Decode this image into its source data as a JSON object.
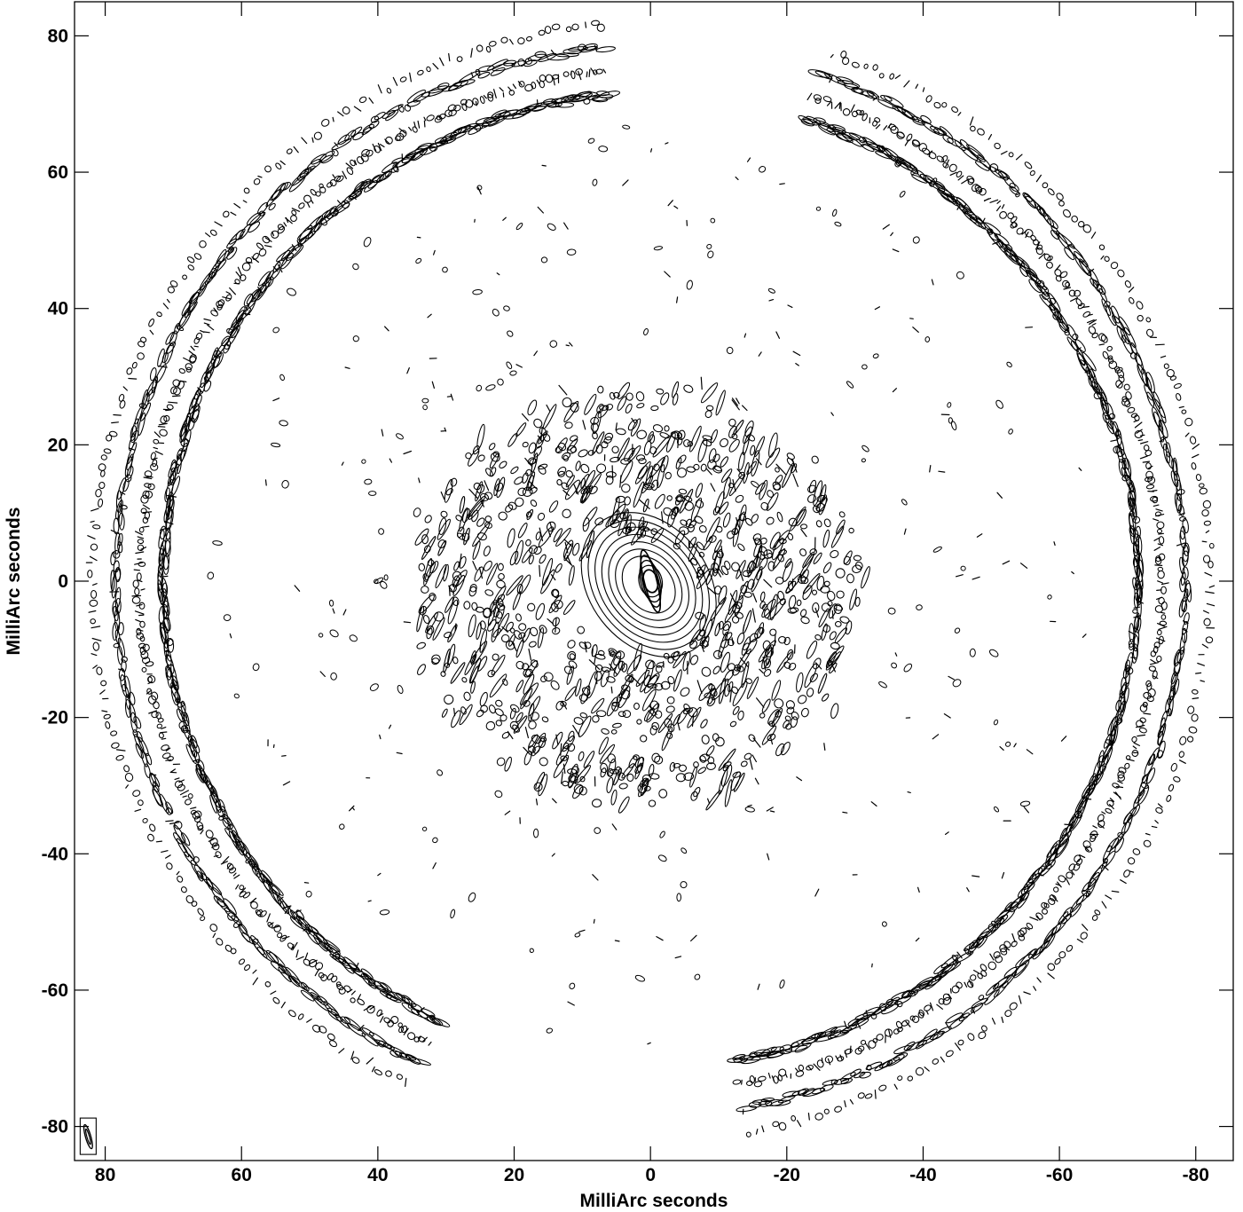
{
  "chart_data": {
    "type": "contour",
    "xlabel": "MilliArc seconds",
    "ylabel": "MilliArc seconds",
    "xlim": [
      84.5,
      -85.5
    ],
    "ylim": [
      -85,
      85
    ],
    "x_ticks": [
      80,
      60,
      40,
      20,
      0,
      -20,
      -40,
      -60,
      -80
    ],
    "y_ticks": [
      80,
      60,
      40,
      20,
      0,
      -20,
      -40,
      -60,
      -80
    ],
    "x_tick_labels": [
      "80",
      "60",
      "40",
      "20",
      "0",
      "-20",
      "-40",
      "-60",
      "-80"
    ],
    "y_tick_labels": [
      "80",
      "60",
      "40",
      "20",
      "0",
      "-20",
      "-40",
      "-60",
      "-80"
    ],
    "grid": false,
    "legend": "none",
    "line_color": "#000000",
    "beam": {
      "corner": "bottom-left",
      "x": 82.5,
      "y": -81.5,
      "shape": "ellipse"
    },
    "components": [
      {
        "name": "central-peak",
        "x": 0,
        "y": 0,
        "radius": 3
      },
      {
        "name": "inner-sidelobe-disk",
        "x": 2,
        "y": -2,
        "radius": 30
      },
      {
        "name": "outer-arc-ring",
        "x": 0,
        "y": 0,
        "radius": 80,
        "spans": [
          "upper-left",
          "lower-right",
          "right"
        ]
      }
    ]
  }
}
